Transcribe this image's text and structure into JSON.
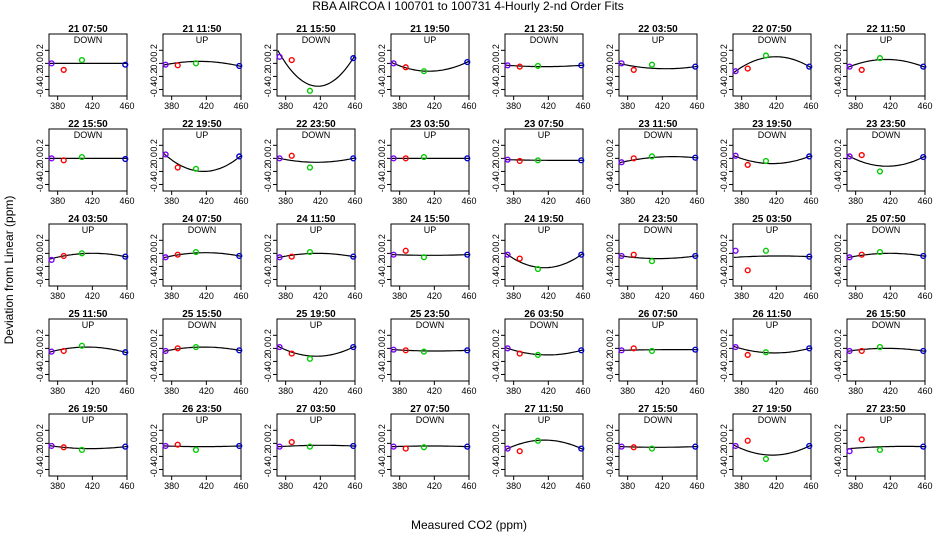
{
  "chart_data": {
    "type": "scatter",
    "title": "RBA   AIRCOA I    100701 to 100731   4-Hourly 2-nd Order Fits",
    "xlabel": "Measured CO2 (ppm)",
    "ylabel": "Deviation from Linear (ppm)",
    "xlim": [
      370,
      460
    ],
    "ylim": [
      -0.5,
      0.45
    ],
    "xticks": [
      "380",
      "420",
      "460"
    ],
    "yticks": [
      "-0.4",
      "-0.2",
      "0.0",
      "0.2"
    ],
    "grid": false,
    "x_standards": [
      373,
      387,
      408,
      458
    ],
    "marker_colors": [
      "#7a00ff",
      "#ff0000",
      "#00cc00",
      "#0000cc"
    ],
    "panels": [
      {
        "title": "21 07:50",
        "mode": "DOWN",
        "points": [
          0.0,
          -0.1,
          0.05,
          -0.02
        ],
        "fit": [
          0,
          0,
          0
        ]
      },
      {
        "title": "21 11:50",
        "mode": "UP",
        "points": [
          -0.02,
          -0.03,
          0.0,
          -0.04
        ],
        "fit": [
          -0.02,
          0.03,
          -0.04
        ]
      },
      {
        "title": "21 15:50",
        "mode": "DOWN",
        "points": [
          0.1,
          0.05,
          -0.42,
          0.08
        ],
        "fit": [
          0.15,
          -0.35,
          0.08
        ]
      },
      {
        "title": "21 19:50",
        "mode": "UP",
        "points": [
          0.0,
          -0.06,
          -0.12,
          0.02
        ],
        "fit": [
          0.0,
          -0.12,
          0.02
        ]
      },
      {
        "title": "21 23:50",
        "mode": "DOWN",
        "points": [
          -0.03,
          -0.05,
          -0.04,
          -0.03
        ],
        "fit": [
          -0.03,
          -0.05,
          -0.03
        ]
      },
      {
        "title": "22 03:50",
        "mode": "UP",
        "points": [
          0.0,
          -0.1,
          -0.02,
          -0.05
        ],
        "fit": [
          -0.01,
          -0.08,
          -0.05
        ]
      },
      {
        "title": "22 07:50",
        "mode": "DOWN",
        "points": [
          -0.12,
          -0.08,
          0.12,
          -0.05
        ],
        "fit": [
          -0.12,
          0.1,
          -0.05
        ]
      },
      {
        "title": "22 11:50",
        "mode": "UP",
        "points": [
          -0.05,
          -0.1,
          0.08,
          -0.05
        ],
        "fit": [
          -0.05,
          0.06,
          -0.05
        ]
      },
      {
        "title": "22 15:50",
        "mode": "DOWN",
        "points": [
          0.0,
          -0.03,
          0.02,
          -0.01
        ],
        "fit": [
          0,
          0,
          0
        ]
      },
      {
        "title": "22 19:50",
        "mode": "UP",
        "points": [
          0.06,
          -0.14,
          -0.16,
          0.03
        ],
        "fit": [
          0.05,
          -0.2,
          0.02
        ]
      },
      {
        "title": "22 23:50",
        "mode": "DOWN",
        "points": [
          0.0,
          0.04,
          -0.14,
          0.0
        ],
        "fit": [
          0.0,
          -0.06,
          0.0
        ]
      },
      {
        "title": "23 03:50",
        "mode": "UP",
        "points": [
          0.0,
          0.0,
          0.02,
          0.0
        ],
        "fit": [
          0,
          0,
          0
        ]
      },
      {
        "title": "23 07:50",
        "mode": "UP",
        "points": [
          -0.02,
          -0.04,
          -0.03,
          -0.03
        ],
        "fit": [
          -0.02,
          -0.03,
          -0.03
        ]
      },
      {
        "title": "23 11:50",
        "mode": "DOWN",
        "points": [
          -0.06,
          0.0,
          0.03,
          0.01
        ],
        "fit": [
          -0.06,
          0.02,
          0.01
        ]
      },
      {
        "title": "23 19:50",
        "mode": "DOWN",
        "points": [
          0.04,
          -0.1,
          -0.04,
          0.03
        ],
        "fit": [
          0.03,
          -0.08,
          0.03
        ]
      },
      {
        "title": "23 23:50",
        "mode": "DOWN",
        "points": [
          0.03,
          0.05,
          -0.2,
          0.02
        ],
        "fit": [
          0.03,
          -0.12,
          0.02
        ]
      },
      {
        "title": "24 03:50",
        "mode": "UP",
        "points": [
          -0.1,
          -0.04,
          0.0,
          -0.05
        ],
        "fit": [
          -0.08,
          0.0,
          -0.05
        ]
      },
      {
        "title": "24 07:50",
        "mode": "DOWN",
        "points": [
          -0.06,
          -0.02,
          0.02,
          -0.04
        ],
        "fit": [
          -0.06,
          0.01,
          -0.04
        ]
      },
      {
        "title": "24 11:50",
        "mode": "UP",
        "points": [
          -0.06,
          -0.05,
          0.02,
          -0.05
        ],
        "fit": [
          -0.06,
          0.0,
          -0.05
        ]
      },
      {
        "title": "24 15:50",
        "mode": "UP",
        "points": [
          -0.02,
          0.04,
          -0.06,
          -0.02
        ],
        "fit": [
          -0.02,
          -0.03,
          -0.02
        ]
      },
      {
        "title": "24 19:50",
        "mode": "UP",
        "points": [
          -0.02,
          -0.08,
          -0.24,
          -0.02
        ],
        "fit": [
          -0.02,
          -0.22,
          -0.02
        ]
      },
      {
        "title": "24 23:50",
        "mode": "DOWN",
        "points": [
          -0.04,
          -0.02,
          -0.12,
          -0.04
        ],
        "fit": [
          -0.04,
          -0.08,
          -0.04
        ]
      },
      {
        "title": "25 03:50",
        "mode": "UP",
        "points": [
          0.04,
          -0.26,
          0.04,
          -0.05
        ],
        "fit": [
          -0.06,
          -0.04,
          -0.05
        ]
      },
      {
        "title": "25 07:50",
        "mode": "DOWN",
        "points": [
          -0.06,
          -0.02,
          0.02,
          -0.04
        ],
        "fit": [
          -0.06,
          0.0,
          -0.04
        ]
      },
      {
        "title": "25 11:50",
        "mode": "UP",
        "points": [
          -0.05,
          -0.04,
          0.04,
          -0.06
        ],
        "fit": [
          -0.05,
          0.02,
          -0.06
        ]
      },
      {
        "title": "25 15:50",
        "mode": "DOWN",
        "points": [
          -0.04,
          0.0,
          0.02,
          -0.03
        ],
        "fit": [
          -0.04,
          0.02,
          -0.03
        ]
      },
      {
        "title": "25 19:50",
        "mode": "UP",
        "points": [
          0.02,
          -0.08,
          -0.16,
          0.02
        ],
        "fit": [
          0.02,
          -0.12,
          0.02
        ]
      },
      {
        "title": "25 23:50",
        "mode": "DOWN",
        "points": [
          -0.02,
          -0.03,
          -0.05,
          -0.03
        ],
        "fit": [
          -0.02,
          -0.04,
          -0.03
        ]
      },
      {
        "title": "26 03:50",
        "mode": "DOWN",
        "points": [
          0.0,
          -0.08,
          -0.1,
          -0.03
        ],
        "fit": [
          0.0,
          -0.1,
          -0.03
        ]
      },
      {
        "title": "26 07:50",
        "mode": "UP",
        "points": [
          -0.03,
          0.0,
          -0.04,
          -0.02
        ],
        "fit": [
          -0.03,
          -0.02,
          -0.02
        ]
      },
      {
        "title": "26 11:50",
        "mode": "UP",
        "points": [
          0.02,
          -0.1,
          -0.06,
          0.0
        ],
        "fit": [
          0.02,
          -0.07,
          0.0
        ]
      },
      {
        "title": "26 15:50",
        "mode": "DOWN",
        "points": [
          -0.04,
          -0.04,
          0.02,
          -0.04
        ],
        "fit": [
          -0.04,
          0.0,
          -0.04
        ]
      },
      {
        "title": "26 19:50",
        "mode": "UP",
        "points": [
          -0.04,
          -0.06,
          -0.1,
          -0.05
        ],
        "fit": [
          -0.04,
          -0.08,
          -0.05
        ]
      },
      {
        "title": "26 23:50",
        "mode": "UP",
        "points": [
          -0.04,
          -0.02,
          -0.1,
          -0.04
        ],
        "fit": [
          -0.04,
          -0.05,
          -0.04
        ]
      },
      {
        "title": "27 03:50",
        "mode": "UP",
        "points": [
          -0.05,
          0.02,
          -0.05,
          -0.04
        ],
        "fit": [
          -0.05,
          -0.03,
          -0.04
        ]
      },
      {
        "title": "27 07:50",
        "mode": "DOWN",
        "points": [
          -0.05,
          -0.08,
          -0.06,
          -0.05
        ],
        "fit": [
          -0.05,
          -0.04,
          -0.05
        ]
      },
      {
        "title": "27 11:50",
        "mode": "UP",
        "points": [
          -0.08,
          -0.12,
          0.04,
          -0.08
        ],
        "fit": [
          -0.08,
          0.05,
          -0.08
        ]
      },
      {
        "title": "27 15:50",
        "mode": "DOWN",
        "points": [
          -0.05,
          -0.06,
          -0.08,
          -0.05
        ],
        "fit": [
          -0.05,
          -0.06,
          -0.05
        ]
      },
      {
        "title": "27 19:50",
        "mode": "DOWN",
        "points": [
          -0.04,
          0.04,
          -0.24,
          -0.04
        ],
        "fit": [
          -0.04,
          -0.18,
          -0.04
        ]
      },
      {
        "title": "27 23:50",
        "mode": "UP",
        "points": [
          -0.12,
          0.06,
          -0.1,
          -0.05
        ],
        "fit": [
          -0.08,
          -0.05,
          -0.05
        ]
      }
    ]
  }
}
